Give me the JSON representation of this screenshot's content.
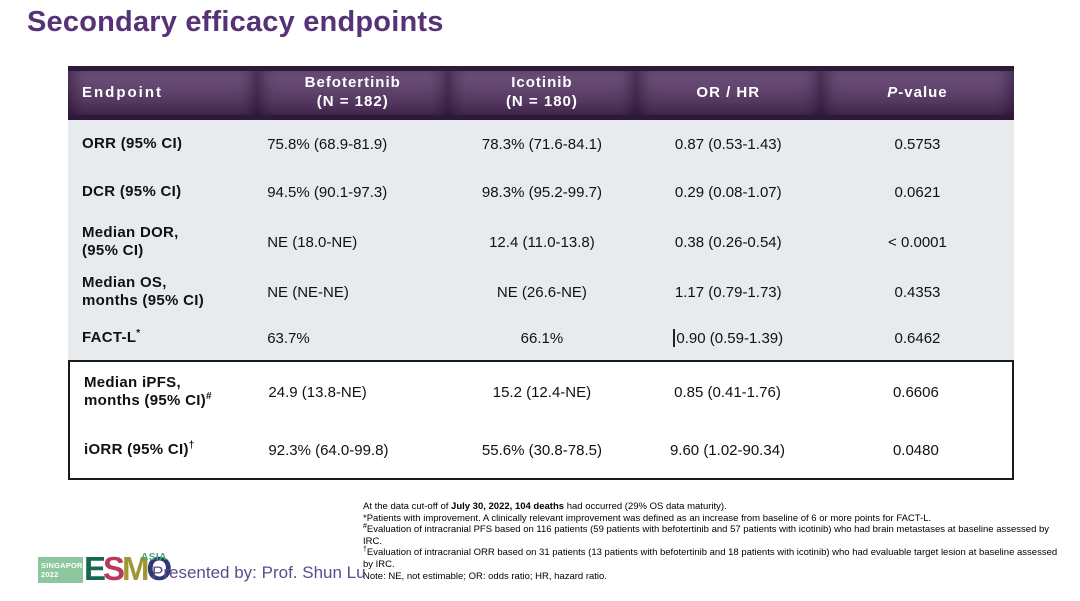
{
  "title": "Secondary efficacy endpoints",
  "colors": {
    "title_purple": "#563276",
    "header_gradient_top": "#705480",
    "header_gradient_bottom": "#472b53",
    "header_border_dark": "#2d1a39",
    "body_grey": "#e8ebee",
    "box_border": "#1a1a1a",
    "badge_green": "#8cc79d",
    "asia_green": "#3ca678",
    "presented_purple": "#5e4a8e"
  },
  "table": {
    "header": {
      "endpoint": "Endpoint",
      "arm1_line1": "Befotertinib",
      "arm1_line2": "(N = 182)",
      "arm2_line1": "Icotinib",
      "arm2_line2": "(N = 180)",
      "or_hr": "OR / HR",
      "p_italic": "P",
      "p_rest": "-value"
    },
    "rows": [
      {
        "endpoint_line1": "ORR (95% CI)",
        "befotertinib": "75.8% (68.9-81.9)",
        "icotinib": "78.3% (71.6-84.1)",
        "or_hr": "0.87 (0.53-1.43)",
        "p_value": "0.5753"
      },
      {
        "endpoint_line1": "DCR (95% CI)",
        "befotertinib": "94.5% (90.1-97.3)",
        "icotinib": "98.3% (95.2-99.7)",
        "or_hr": "0.29 (0.08-1.07)",
        "p_value": "0.0621"
      },
      {
        "endpoint_line1": "Median DOR,",
        "endpoint_line2": "(95% CI)",
        "befotertinib": "NE (18.0-NE)",
        "icotinib": "12.4 (11.0-13.8)",
        "or_hr": "0.38 (0.26-0.54)",
        "p_value": "< 0.0001"
      },
      {
        "endpoint_line1": "Median OS,",
        "endpoint_line2": "months (95% CI)",
        "befotertinib": "NE (NE-NE)",
        "icotinib": "NE (26.6-NE)",
        "or_hr": "1.17 (0.79-1.73)",
        "p_value": "0.4353"
      },
      {
        "endpoint_line1": "FACT-L",
        "endpoint_sup": "*",
        "befotertinib": "63.7%",
        "icotinib": "66.1%",
        "or_hr": "0.90 (0.59-1.39)",
        "p_value": "0.6462"
      },
      {
        "endpoint_line1": "Median iPFS,",
        "endpoint_line2": "months (95% CI)",
        "endpoint_sup": "#",
        "befotertinib": "24.9 (13.8-NE)",
        "icotinib": "15.2 (12.4-NE)",
        "or_hr": "0.85 (0.41-1.76)",
        "p_value": "0.6606"
      },
      {
        "endpoint_line1": "iORR (95% CI)",
        "endpoint_sup": "†",
        "befotertinib": "92.3% (64.0-99.8)",
        "icotinib": "55.6% (30.8-78.5)",
        "or_hr": "9.60 (1.02-90.34)",
        "p_value": "0.0480"
      }
    ]
  },
  "footnotes": {
    "line1_pre": "At the data cut-off of ",
    "line1_bold": "July 30, 2022, 104 deaths",
    "line1_post": " had occurred (29% OS data maturity).",
    "fn_star_marker": "*",
    "fn_star": "Patients with improvement. A clinically relevant improvement was defined as an increase from baseline of 6 or more points for FACT-L.",
    "fn_hash_marker": "#",
    "fn_hash": "Evaluation of intracranial PFS based on 116 patients (59 patients with befotertinib and 57 patients with icotinib) who had brain metastases at baseline assessed by IRC.",
    "fn_dagger_marker": "†",
    "fn_dagger": "Evaluation of intracranial ORR based on 31 patients (13 patients with befotertinib and 18 patients with icotinib) who had evaluable target lesion at baseline assessed by IRC.",
    "note": "Note: NE, not estimable; OR: odds ratio; HR, hazard ratio."
  },
  "footer": {
    "badge_line1": "SINGAPORE",
    "badge_line2": "2022",
    "esmo_letters": [
      {
        "char": "E",
        "color": "#176a50"
      },
      {
        "char": "S",
        "color": "#b8395c"
      },
      {
        "char": "M",
        "color": "#9d9834"
      },
      {
        "char": "O",
        "color": "#2e3a74"
      }
    ],
    "asia": "ASIA",
    "presented_by": "Presented by: Prof. Shun Lu"
  }
}
